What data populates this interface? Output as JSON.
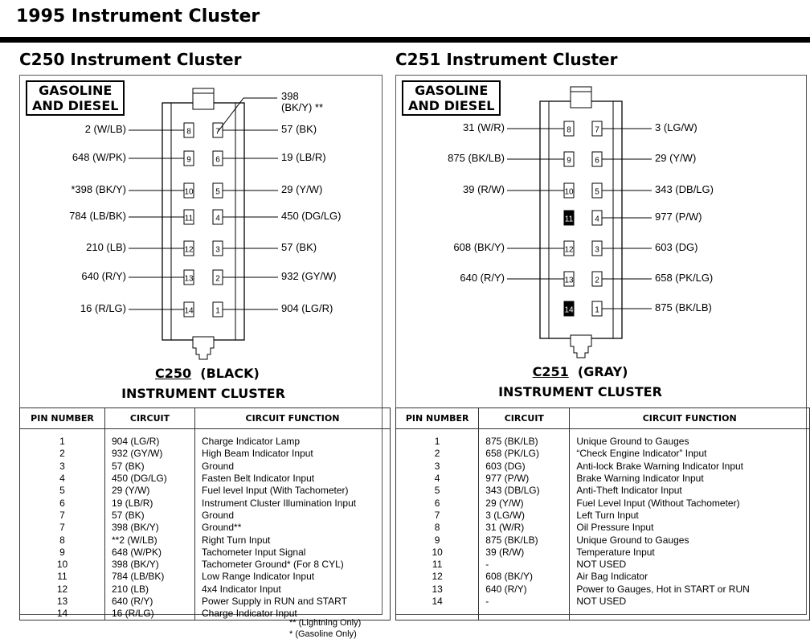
{
  "title": "1995 Instrument Cluster",
  "connectors": [
    {
      "id": "c250",
      "heading": "C250  Instrument Cluster",
      "badge": [
        "GASOLINE",
        "AND DIESEL"
      ],
      "code": "C250",
      "color_label": "(BLACK)",
      "subtitle": "INSTRUMENT  CLUSTER",
      "left_pins": [
        {
          "pin": "8",
          "label": "2 (W/LB)"
        },
        {
          "pin": "9",
          "label": "648 (W/PK)"
        },
        {
          "pin": "10",
          "label": "*398 (BK/Y)"
        },
        {
          "pin": "11",
          "label": "784 (LB/BK)"
        },
        {
          "pin": "12",
          "label": "210 (LB)"
        },
        {
          "pin": "13",
          "label": "640 (R/Y)"
        },
        {
          "pin": "14",
          "label": "16 (R/LG)"
        }
      ],
      "right_pins": [
        {
          "pin": "7",
          "label": "57 (BK)"
        },
        {
          "pin": "6",
          "label": "19 (LB/R)"
        },
        {
          "pin": "5",
          "label": "29 (Y/W)"
        },
        {
          "pin": "4",
          "label": "450 (DG/LG)"
        },
        {
          "pin": "3",
          "label": "57 (BK)"
        },
        {
          "pin": "2",
          "label": "932 (GY/W)"
        },
        {
          "pin": "1",
          "label": "904  (LG/R)"
        }
      ],
      "extra_wire": {
        "pin": "7",
        "label_line1": "398",
        "label_line2": "(BK/Y) **"
      },
      "filled_pins": [],
      "table": {
        "headers": [
          "PIN NUMBER",
          "CIRCUIT",
          "CIRCUIT  FUNCTION"
        ],
        "rows": [
          [
            "1",
            "904  (LG/R)",
            "Charge Indicator Lamp"
          ],
          [
            "2",
            "932 (GY/W)",
            "High Beam Indicator Input"
          ],
          [
            "3",
            "57  (BK)",
            "Ground"
          ],
          [
            "4",
            "450  (DG/LG)",
            "Fasten Belt Indicator Input"
          ],
          [
            "5",
            "29 (Y/W)",
            "Fuel level Input (With Tachometer)"
          ],
          [
            "6",
            "19  (LB/R)",
            "Instrument Cluster Illumination Input"
          ],
          [
            "7",
            "57  (BK)",
            "Ground"
          ],
          [
            "7",
            "398  (BK/Y)",
            "Ground**"
          ],
          [
            "8",
            "**2 (W/LB)",
            "Right Turn Input"
          ],
          [
            "9",
            "648 (W/PK)",
            "Tachometer Input Signal"
          ],
          [
            "10",
            "398  (BK/Y)",
            "Tachometer Ground* (For 8 CYL)"
          ],
          [
            "11",
            "784  (LB/BK)",
            "Low Range Indicator Input"
          ],
          [
            "12",
            "210  (LB)",
            "4x4 Indicator Input"
          ],
          [
            "13",
            "640 (R/Y)",
            "Power Supply in RUN and START"
          ],
          [
            "14",
            "16  (R/LG)",
            "Charge Indicator Input"
          ]
        ]
      },
      "notes": [
        "**  (Lightning Only)",
        "*   (Gasoline Only)"
      ]
    },
    {
      "id": "c251",
      "heading": "C251  Instrument Cluster",
      "badge": [
        "GASOLINE",
        "AND DIESEL"
      ],
      "code": "C251",
      "color_label": "(GRAY)",
      "subtitle": "INSTRUMENT  CLUSTER",
      "left_pins": [
        {
          "pin": "8",
          "label": "31 (W/R)"
        },
        {
          "pin": "9",
          "label": "875 (BK/LB)"
        },
        {
          "pin": "10",
          "label": "39 (R/W)"
        },
        {
          "pin": "11",
          "label": ""
        },
        {
          "pin": "12",
          "label": "608 (BK/Y)"
        },
        {
          "pin": "13",
          "label": "640 (R/Y)"
        },
        {
          "pin": "14",
          "label": ""
        }
      ],
      "right_pins": [
        {
          "pin": "7",
          "label": "3 (LG/W)"
        },
        {
          "pin": "6",
          "label": "29 (Y/W)"
        },
        {
          "pin": "5",
          "label": "343 (DB/LG)"
        },
        {
          "pin": "4",
          "label": "977 (P/W)"
        },
        {
          "pin": "3",
          "label": "603 (DG)"
        },
        {
          "pin": "2",
          "label": "658 (PK/LG)"
        },
        {
          "pin": "1",
          "label": "875 (BK/LB)"
        }
      ],
      "filled_pins": [
        "11",
        "14"
      ],
      "table": {
        "headers": [
          "PIN NUMBER",
          "CIRCUIT",
          "CIRCUIT  FUNCTION"
        ],
        "rows": [
          [
            "1",
            "875  (BK/LB)",
            "Unique Ground to Gauges"
          ],
          [
            "2",
            "658 (PK/LG)",
            "“Check Engine Indicator” Input"
          ],
          [
            "3",
            "603  (DG)",
            "Anti-lock Brake Warning Indicator Input"
          ],
          [
            "4",
            "977 (P/W)",
            "Brake Warning Indicator Input"
          ],
          [
            "5",
            "343  (DB/LG)",
            "Anti-Theft Indicator Input"
          ],
          [
            "6",
            "29 (Y/W)",
            "Fuel Level Input (Without Tachometer)"
          ],
          [
            "7",
            "3 (LG/W)",
            "Left Turn Input"
          ],
          [
            "8",
            "31  (W/R)",
            "Oil Pressure Input"
          ],
          [
            "9",
            "875  (BK/LB)",
            "Unique Ground to Gauges"
          ],
          [
            "10",
            "39 (R/W)",
            "Temperature Input"
          ],
          [
            "11",
            "-",
            "NOT USED"
          ],
          [
            "12",
            "608  (BK/Y)",
            "Air Bag Indicator"
          ],
          [
            "13",
            "640  (R/Y)",
            "Power to Gauges, Hot in START or RUN"
          ],
          [
            "14",
            "-",
            "NOT USED"
          ]
        ]
      },
      "notes": []
    }
  ]
}
